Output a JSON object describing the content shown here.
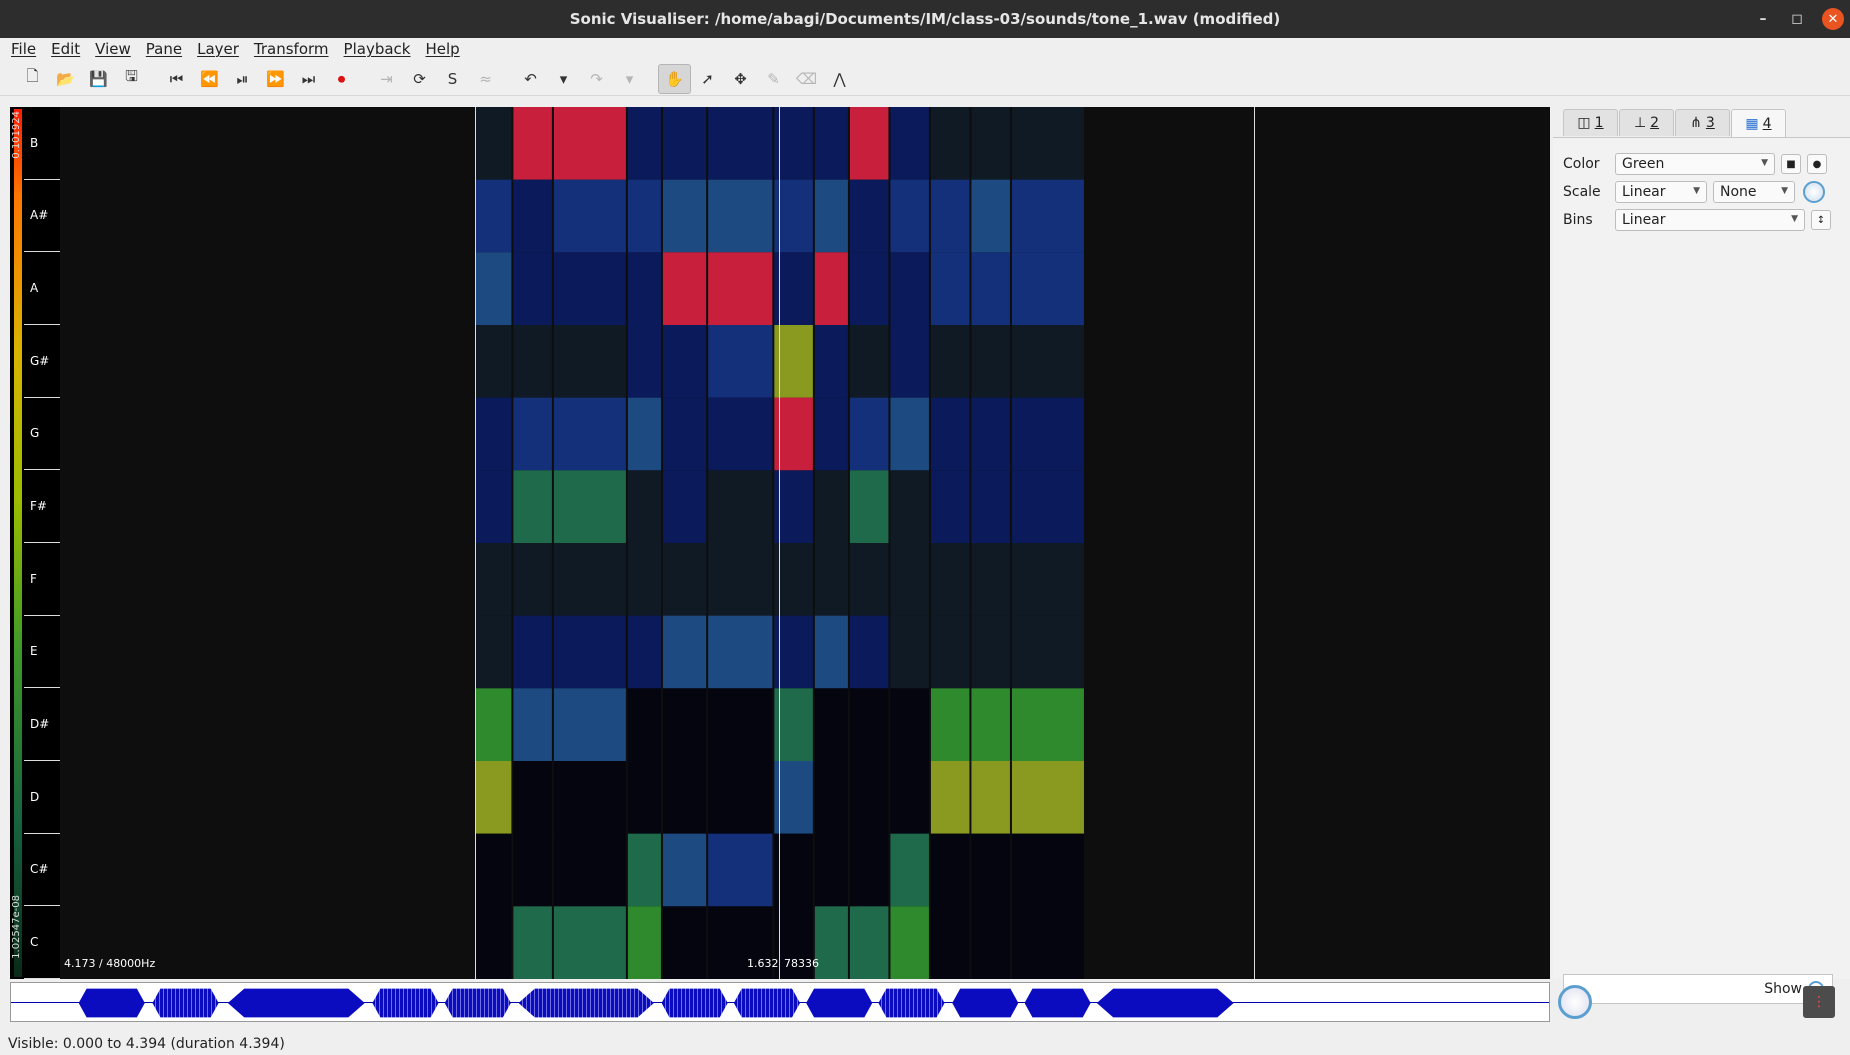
{
  "window": {
    "title": "Sonic Visualiser: /home/abagi/Documents/IM/class-03/sounds/tone_1.wav (modified)",
    "minimize": "–",
    "maximize": "◻",
    "close": "✕"
  },
  "menu": [
    "File",
    "Edit",
    "View",
    "Pane",
    "Layer",
    "Transform",
    "Playback",
    "Help"
  ],
  "toolbar": {
    "buttons": [
      "new-file-icon",
      "open-file-icon",
      "save-icon",
      "save-as-icon",
      "|",
      "rewind-start-icon",
      "rewind-icon",
      "play-pause-icon",
      "fast-forward-icon",
      "fast-forward-end-icon",
      "record-icon",
      "|",
      "play-selection-icon",
      "loop-icon",
      "solo-icon",
      "align-icon",
      "|",
      "undo-icon",
      "undo-menu-icon",
      "redo-icon",
      "redo-menu-icon",
      "|",
      "navigate-tool-icon",
      "select-tool-icon",
      "move-tool-icon",
      "draw-tool-icon",
      "erase-tool-icon",
      "measure-tool-icon"
    ],
    "glyphs": {
      "new-file-icon": "🗋",
      "open-file-icon": "📂",
      "save-icon": "💾",
      "save-as-icon": "🖫",
      "rewind-start-icon": "⏮",
      "rewind-icon": "⏪",
      "play-pause-icon": "⏯",
      "fast-forward-icon": "⏩",
      "fast-forward-end-icon": "⏭",
      "record-icon": "⏺",
      "play-selection-icon": "⇥",
      "loop-icon": "⟳",
      "solo-icon": "S",
      "align-icon": "≈",
      "undo-icon": "↶",
      "undo-menu-icon": "▾",
      "redo-icon": "↷",
      "redo-menu-icon": "▾",
      "navigate-tool-icon": "✋",
      "select-tool-icon": "➚",
      "move-tool-icon": "✥",
      "draw-tool-icon": "✎",
      "erase-tool-icon": "⌫",
      "measure-tool-icon": "⋀"
    },
    "dimmed": [
      "save-icon",
      "play-selection-icon",
      "align-icon",
      "redo-icon",
      "redo-menu-icon",
      "draw-tool-icon",
      "erase-tool-icon"
    ],
    "active": "navigate-tool-icon"
  },
  "pane": {
    "colorbar_top": "0.101924",
    "colorbar_bottom": "1.02547e-08",
    "keys": [
      "B",
      "A#",
      "A",
      "G#",
      "G",
      "F#",
      "F",
      "E",
      "D#",
      "D",
      "C#",
      "C"
    ],
    "frame_readout": "4.173 / 48000Hz",
    "cursor_time": "1.632",
    "cursor_frame": "78336"
  },
  "chromagram": {
    "columns": [
      {
        "w": 0.048,
        "cells": [
          1,
          3,
          4,
          1,
          2,
          2,
          1,
          1,
          6,
          7,
          0,
          0
        ]
      },
      {
        "w": 0.052,
        "cells": [
          8,
          2,
          2,
          1,
          3,
          5,
          1,
          2,
          4,
          0,
          0,
          5
        ]
      },
      {
        "w": 0.095,
        "cells": [
          8,
          3,
          2,
          1,
          3,
          5,
          1,
          2,
          4,
          0,
          0,
          5
        ]
      },
      {
        "w": 0.045,
        "cells": [
          2,
          3,
          2,
          2,
          4,
          1,
          1,
          2,
          0,
          0,
          5,
          6
        ]
      },
      {
        "w": 0.058,
        "cells": [
          2,
          4,
          8,
          2,
          2,
          2,
          1,
          4,
          0,
          0,
          4,
          0
        ]
      },
      {
        "w": 0.085,
        "cells": [
          2,
          4,
          8,
          3,
          2,
          1,
          1,
          4,
          0,
          0,
          3,
          0
        ]
      },
      {
        "w": 0.052,
        "cells": [
          2,
          3,
          2,
          7,
          8,
          2,
          1,
          2,
          5,
          4,
          0,
          0
        ]
      },
      {
        "w": 0.045,
        "cells": [
          2,
          4,
          8,
          2,
          2,
          1,
          1,
          4,
          0,
          0,
          0,
          5
        ]
      },
      {
        "w": 0.052,
        "cells": [
          8,
          2,
          2,
          1,
          3,
          5,
          1,
          2,
          0,
          0,
          0,
          5
        ]
      },
      {
        "w": 0.052,
        "cells": [
          2,
          3,
          2,
          2,
          4,
          1,
          1,
          1,
          0,
          0,
          5,
          6
        ]
      },
      {
        "w": 0.052,
        "cells": [
          1,
          3,
          3,
          1,
          2,
          2,
          1,
          1,
          6,
          7,
          0,
          0
        ]
      },
      {
        "w": 0.052,
        "cells": [
          1,
          4,
          3,
          1,
          2,
          2,
          1,
          1,
          6,
          7,
          0,
          0
        ]
      },
      {
        "w": 0.095,
        "cells": [
          1,
          3,
          3,
          1,
          2,
          2,
          1,
          1,
          6,
          7,
          0,
          0
        ]
      }
    ]
  },
  "panel": {
    "tabs": [
      {
        "num": "1",
        "icon": "pane-icon"
      },
      {
        "num": "2",
        "icon": "ruler-icon"
      },
      {
        "num": "3",
        "icon": "waveform-icon"
      },
      {
        "num": "4",
        "icon": "colour-map-icon"
      }
    ],
    "color_label": "Color",
    "color_value": "Green",
    "scale_label": "Scale",
    "scale_value": "Linear",
    "normalize_value": "None",
    "bins_label": "Bins",
    "bins_value": "Linear",
    "show_label": "Show"
  },
  "overview": {
    "blobs": [
      {
        "s": 0.044,
        "e": 0.087,
        "t": "tone"
      },
      {
        "s": 0.092,
        "e": 0.135,
        "t": "buzz"
      },
      {
        "s": 0.141,
        "e": 0.23,
        "t": "tone"
      },
      {
        "s": 0.235,
        "e": 0.278,
        "t": "buzz"
      },
      {
        "s": 0.282,
        "e": 0.325,
        "t": "buzz"
      },
      {
        "s": 0.33,
        "e": 0.418,
        "t": "buzz"
      },
      {
        "s": 0.423,
        "e": 0.466,
        "t": "buzz"
      },
      {
        "s": 0.47,
        "e": 0.513,
        "t": "buzz"
      },
      {
        "s": 0.517,
        "e": 0.56,
        "t": "tone"
      },
      {
        "s": 0.564,
        "e": 0.607,
        "t": "buzz"
      },
      {
        "s": 0.612,
        "e": 0.655,
        "t": "tone"
      },
      {
        "s": 0.659,
        "e": 0.702,
        "t": "tone"
      },
      {
        "s": 0.706,
        "e": 0.795,
        "t": "tone"
      }
    ]
  },
  "status": "Visible: 0.000 to 4.394 (duration 4.394)",
  "colors": {
    "levels": [
      "#050510",
      "#101a24",
      "#0b1a5a",
      "#14307a",
      "#1d4a80",
      "#1f6a4a",
      "#2e8a2c",
      "#8a9a20",
      "#c8203c"
    ]
  }
}
